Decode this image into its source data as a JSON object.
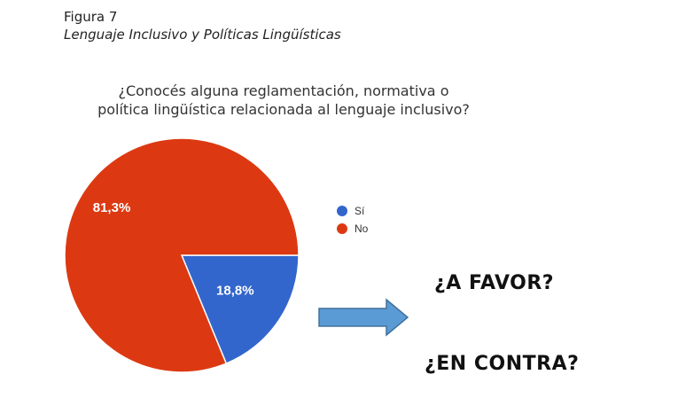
{
  "figure": {
    "label": "Figura 7",
    "title": "Lenguaje Inclusivo y Políticas Lingüísticas"
  },
  "chart_data": {
    "type": "pie",
    "title_lines": [
      "¿Conocés alguna reglamentación, normativa o",
      "política lingüística relacionada al lenguaje inclusivo?"
    ],
    "categories": [
      "Sí",
      "No"
    ],
    "values": [
      18.8,
      81.3
    ],
    "data_labels": [
      "18,8%",
      "81,3%"
    ],
    "colors": [
      "#3366cc",
      "#dc3912"
    ],
    "legend_position": "right"
  },
  "annotations": {
    "favor": "¿A FAVOR?",
    "contra": "¿EN CONTRA?",
    "arrow_icon": "right-arrow-icon"
  }
}
